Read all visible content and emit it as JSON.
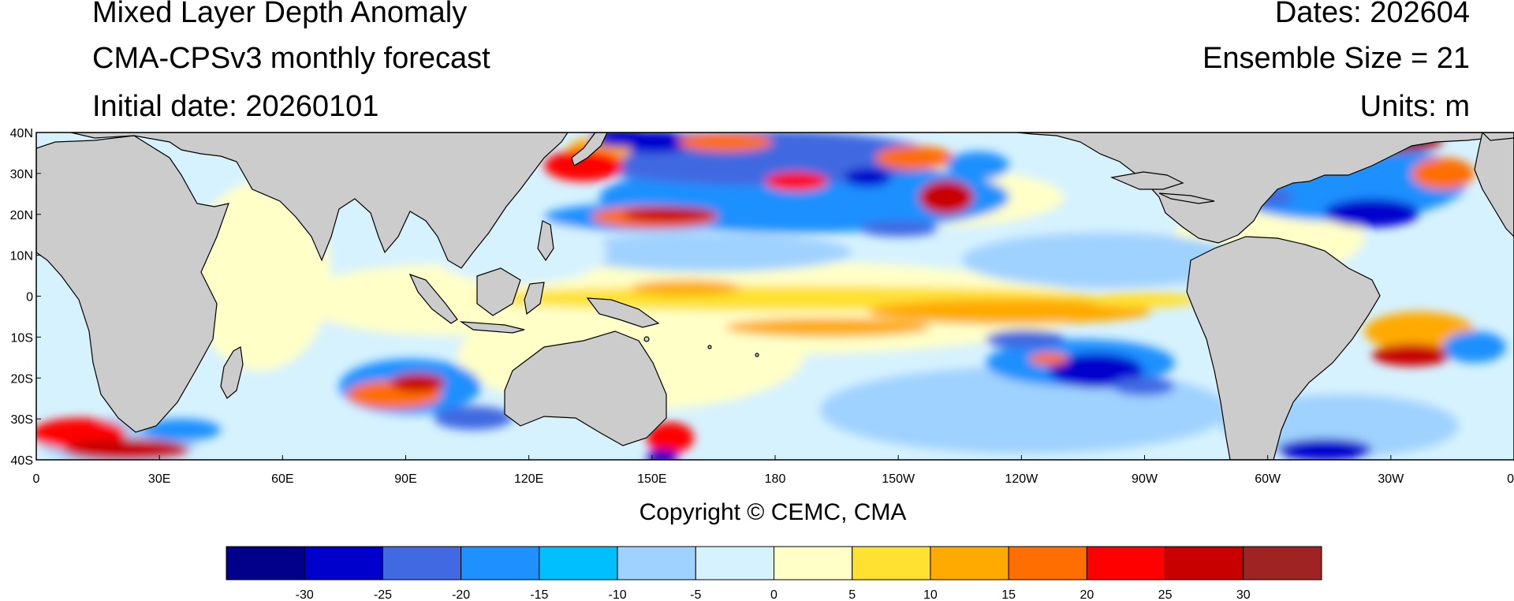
{
  "header": {
    "title": "Mixed Layer Depth Anomaly",
    "model": "CMA-CPSv3 monthly forecast",
    "initial_date": "Initial date: 20260101",
    "dates": "Dates: 202604",
    "ensemble": "Ensemble Size = 21",
    "units": "Units: m"
  },
  "map": {
    "lat_labels": [
      "40N",
      "30N",
      "20N",
      "10N",
      "0",
      "10S",
      "20S",
      "30S",
      "40S"
    ],
    "lon_labels": [
      "0",
      "30E",
      "60E",
      "90E",
      "120E",
      "150E",
      "180",
      "150W",
      "120W",
      "90W",
      "60W",
      "30W",
      "0"
    ],
    "land_color": "#cccccc",
    "ocean_base_color": "#d6f2ff"
  },
  "copyright": "Copyright © CEMC, CMA",
  "colorbar": {
    "colors": [
      "#00008b",
      "#0000cd",
      "#4169e1",
      "#1e90ff",
      "#00bfff",
      "#a0d2ff",
      "#d6f2ff",
      "#ffffc8",
      "#ffe132",
      "#ffaa00",
      "#ff6e00",
      "#ff0000",
      "#c80000",
      "#a02323"
    ],
    "tick_labels": [
      "-30",
      "-25",
      "-20",
      "-15",
      "-10",
      "-5",
      "0",
      "5",
      "10",
      "15",
      "20",
      "25",
      "30"
    ]
  }
}
